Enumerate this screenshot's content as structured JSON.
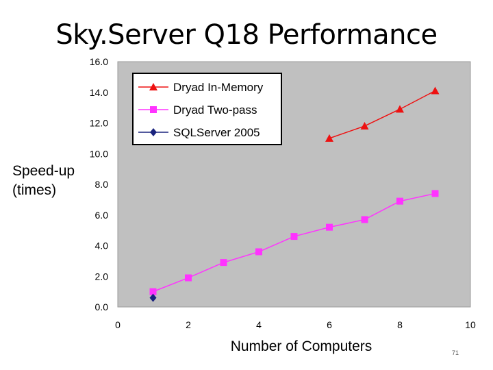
{
  "slide": {
    "title": "Sky.Server Q18 Performance",
    "page_number": "71"
  },
  "chart_data": {
    "type": "line",
    "xlabel": "Number of Computers",
    "ylabel_lines": [
      "Speed-up",
      "(times)"
    ],
    "xlim": [
      0,
      10
    ],
    "ylim": [
      0,
      16
    ],
    "xticks": [
      0,
      2,
      4,
      6,
      8,
      10
    ],
    "xtick_labels": [
      "0",
      "2",
      "4",
      "6",
      "8",
      "10"
    ],
    "yticks": [
      0,
      2,
      4,
      6,
      8,
      10,
      12,
      14,
      16
    ],
    "ytick_labels": [
      "0.0",
      "2.0",
      "4.0",
      "6.0",
      "8.0",
      "10.0",
      "12.0",
      "14.0",
      "16.0"
    ],
    "grid": false,
    "plot_background": "#c0c0c0",
    "legend_position": "top-left",
    "series": [
      {
        "name": "Dryad In-Memory",
        "color": "#ee1111",
        "marker": "triangle",
        "x": [
          6,
          7,
          8,
          9
        ],
        "values": [
          11.0,
          11.8,
          12.9,
          14.1
        ]
      },
      {
        "name": "Dryad Two-pass",
        "color": "#ff33ff",
        "marker": "square",
        "x": [
          1,
          2,
          3,
          4,
          5,
          6,
          7,
          8,
          9
        ],
        "values": [
          1.0,
          1.9,
          2.9,
          3.6,
          4.6,
          5.2,
          5.7,
          6.9,
          7.4
        ]
      },
      {
        "name": "SQLServer 2005",
        "color": "#1a237e",
        "marker": "diamond",
        "x": [
          1
        ],
        "values": [
          0.6
        ]
      }
    ]
  }
}
